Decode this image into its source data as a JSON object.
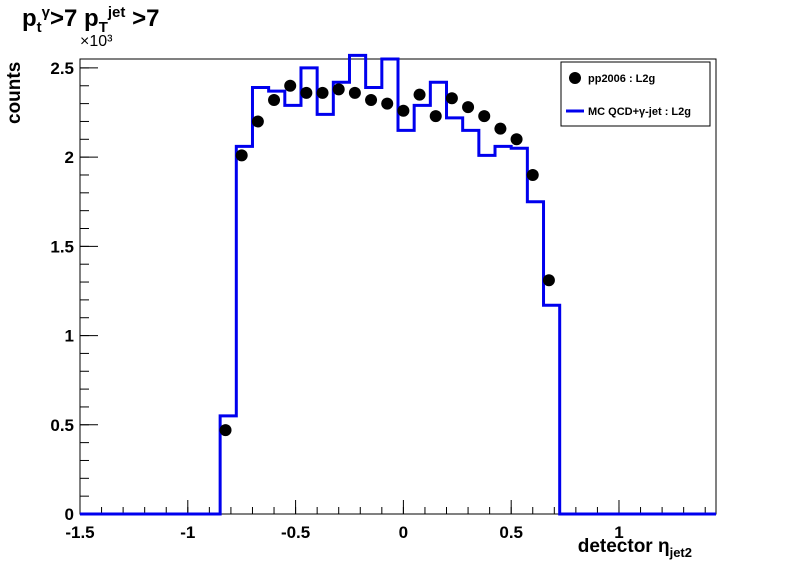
{
  "title": {
    "main": "p",
    "sub1": "t",
    "sup1": "γ",
    "mid": ">7 p",
    "sub2": "T",
    "sup2": "jet",
    "end": " >7"
  },
  "exponent_label": "×10³",
  "legend": {
    "data_label": "pp2006 : L2g",
    "mc_label": "MC QCD+γ-jet : L2g"
  },
  "colors": {
    "data": "#000000",
    "mc": "#0000ee",
    "frame": "#000000"
  },
  "chart_data": {
    "type": "scatter",
    "title": "p_t^γ>7 p_T^jet >7",
    "xlabel": "detector η_jet2",
    "ylabel": "counts",
    "y_scale_note": "×10³",
    "xlim": [
      -1.5,
      1.45
    ],
    "ylim": [
      0,
      2.55
    ],
    "xticks": [
      -1.5,
      -1,
      -0.5,
      0,
      0.5,
      1
    ],
    "yticks": [
      0,
      0.5,
      1,
      1.5,
      2,
      2.5
    ],
    "xtick_labels": [
      "-1.5",
      "-1",
      "-0.5",
      "0",
      "0.5",
      "1"
    ],
    "ytick_labels": [
      "0",
      "0.5",
      "1",
      "1.5",
      "2",
      "2.5"
    ],
    "series": [
      {
        "name": "pp2006 : L2g",
        "kind": "points",
        "x": [
          -0.825,
          -0.75,
          -0.675,
          -0.6,
          -0.525,
          -0.45,
          -0.375,
          -0.3,
          -0.225,
          -0.15,
          -0.075,
          0.0,
          0.075,
          0.15,
          0.225,
          0.3,
          0.375,
          0.45,
          0.525,
          0.6,
          0.675,
          0.75
        ],
        "y": [
          0.47,
          2.01,
          2.2,
          2.32,
          2.4,
          2.36,
          2.36,
          2.38,
          2.36,
          2.32,
          2.3,
          2.26,
          2.35,
          2.23,
          2.33,
          2.28,
          2.23,
          2.16,
          2.1,
          1.9,
          1.31,
          0
        ]
      },
      {
        "name": "MC QCD+γ-jet : L2g",
        "kind": "step",
        "edges": [
          -1.5,
          -0.85,
          -0.775,
          -0.7,
          -0.625,
          -0.55,
          -0.475,
          -0.4,
          -0.325,
          -0.25,
          -0.175,
          -0.1,
          -0.025,
          0.05,
          0.125,
          0.2,
          0.275,
          0.35,
          0.425,
          0.5,
          0.575,
          0.65,
          0.725,
          0.8,
          1.45
        ],
        "y": [
          0,
          0.55,
          2.06,
          2.39,
          2.37,
          2.29,
          2.5,
          2.24,
          2.42,
          2.57,
          2.39,
          2.55,
          2.15,
          2.29,
          2.42,
          2.22,
          2.15,
          2.01,
          2.06,
          2.05,
          1.75,
          1.17,
          0,
          0
        ]
      }
    ],
    "legend_position": "top-right"
  }
}
